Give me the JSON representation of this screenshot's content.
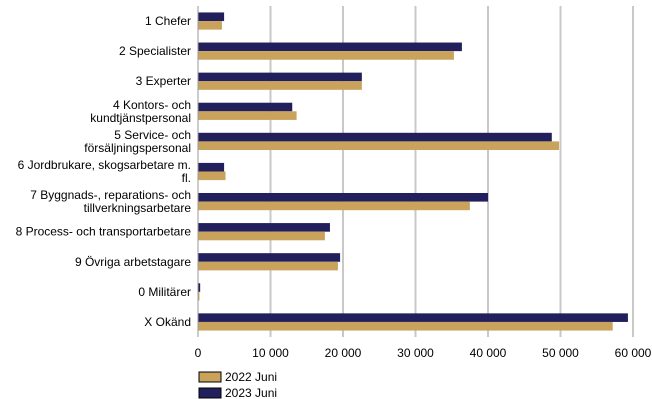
{
  "chart_data": {
    "type": "bar",
    "orientation": "horizontal",
    "categories": [
      [
        "1 Chefer"
      ],
      [
        "2 Specialister"
      ],
      [
        "3 Experter"
      ],
      [
        "4 Kontors- och",
        "kundtjänstpersonal"
      ],
      [
        "5 Service- och",
        "försäljningspersonal"
      ],
      [
        "6 Jordbrukare, skogsarbetare m.",
        "fl."
      ],
      [
        "7 Byggnads-, reparations- och",
        "tillverkningsarbetare"
      ],
      [
        "8 Process- och transportarbetare"
      ],
      [
        "9 Övriga arbetstagare"
      ],
      [
        "0 Militärer"
      ],
      [
        "X Okänd"
      ]
    ],
    "series": [
      {
        "name": "2023 Juni",
        "color": "#22205c",
        "values": [
          3600,
          36400,
          22600,
          13000,
          48800,
          3600,
          40000,
          18200,
          19600,
          300,
          59300
        ]
      },
      {
        "name": "2022 Juni",
        "color": "#c9a35c",
        "values": [
          3300,
          35300,
          22600,
          13600,
          49800,
          3800,
          37500,
          17500,
          19300,
          200,
          57200
        ]
      }
    ],
    "xlim": [
      0,
      60000
    ],
    "xticks": [
      0,
      10000,
      20000,
      30000,
      40000,
      50000,
      60000
    ],
    "xtick_labels": [
      "0",
      "10 000",
      "20 000",
      "30 000",
      "40 000",
      "50 000",
      "60 000"
    ],
    "grid": "vertical",
    "legend": {
      "position": "bottom-left",
      "entries": [
        {
          "label": "2022 Juni",
          "color": "#c9a35c"
        },
        {
          "label": "2023 Juni",
          "color": "#22205c"
        }
      ]
    },
    "title": "",
    "xlabel": "",
    "ylabel": ""
  }
}
